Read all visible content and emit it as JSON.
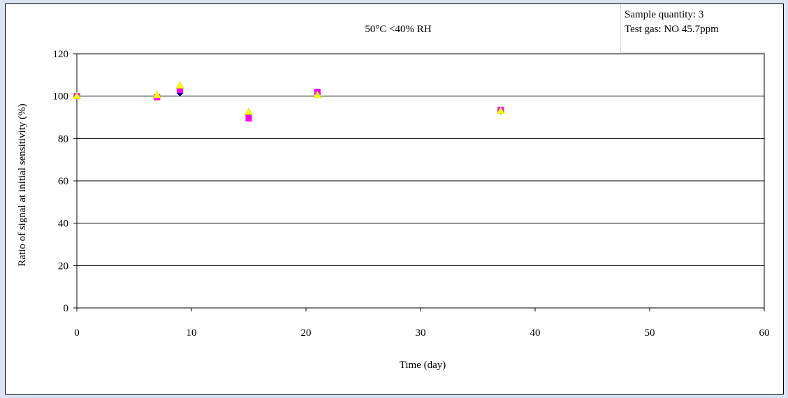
{
  "info": {
    "line1": "Sample quantity:  3",
    "line2": "Test gas: NO 45.7ppm"
  },
  "chart_data": {
    "type": "scatter",
    "title": "50°C <40% RH",
    "xlabel": "Time (day)",
    "ylabel": "Ratio of signal at initial sensitivity (%)",
    "xlim": [
      0,
      60
    ],
    "ylim": [
      0,
      120
    ],
    "x_ticks": [
      0,
      10,
      20,
      30,
      40,
      50,
      60
    ],
    "y_ticks": [
      0,
      20,
      40,
      60,
      80,
      100,
      120
    ],
    "grid": "horizontal",
    "series": [
      {
        "marker": "diamond",
        "color": "#000080",
        "points": [
          [
            0,
            100
          ],
          [
            7,
            100
          ],
          [
            9,
            101.5
          ],
          [
            15,
            91
          ],
          [
            21,
            101
          ],
          [
            37,
            93
          ]
        ]
      },
      {
        "marker": "square",
        "color": "#ff00ff",
        "points": [
          [
            0,
            100
          ],
          [
            7,
            99.5
          ],
          [
            9,
            103
          ],
          [
            15,
            89.5
          ],
          [
            21,
            102
          ],
          [
            37,
            93.5
          ]
        ]
      },
      {
        "marker": "triangle",
        "color": "#ffff00",
        "points": [
          [
            0,
            100
          ],
          [
            7,
            100.5
          ],
          [
            9,
            105
          ],
          [
            15,
            92.5
          ],
          [
            21,
            100.5
          ],
          [
            37,
            93
          ]
        ]
      }
    ]
  }
}
